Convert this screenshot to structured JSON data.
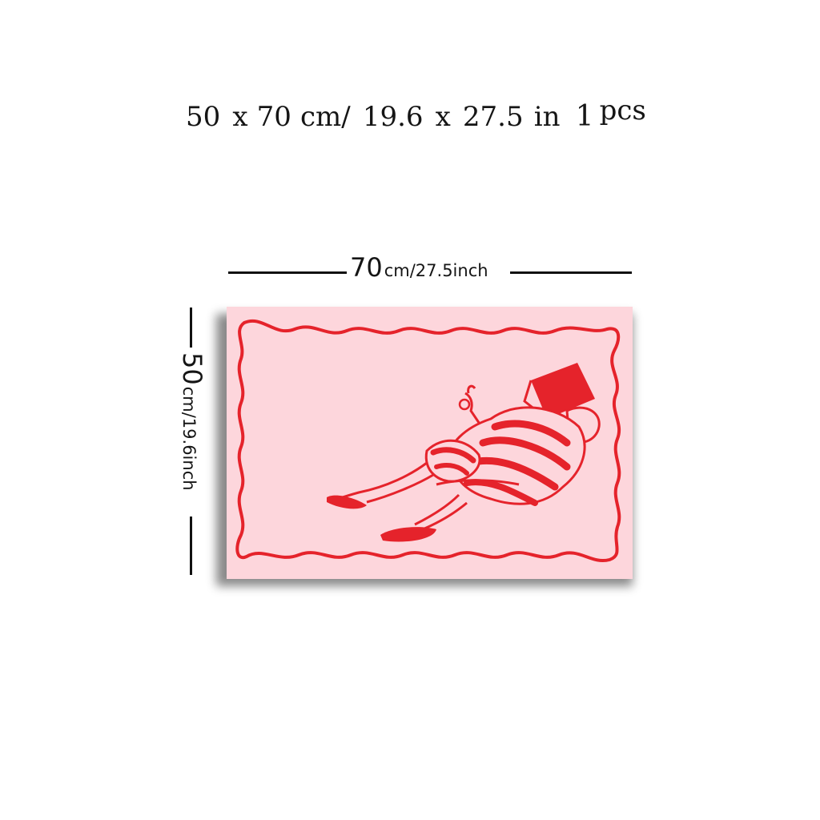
{
  "headline": {
    "width_cm": "50",
    "x1": "x",
    "height_cm": "70",
    "cm_sep": "cm/",
    "width_in": "19.6",
    "x2": "x",
    "height_in": "27.5",
    "in_unit": "in",
    "count": "1",
    "count_unit": "pcs"
  },
  "width_dimension": {
    "value": "70",
    "unit": "cm/27.5inch"
  },
  "height_dimension": {
    "value": "50",
    "unit": "cm/19.6inch"
  },
  "artwork": {
    "description_icon": "reclining-woman-reading-illustration",
    "background_color": "#fdd6dc",
    "line_color": "#e5232b",
    "frame_style": "wavy-border"
  }
}
